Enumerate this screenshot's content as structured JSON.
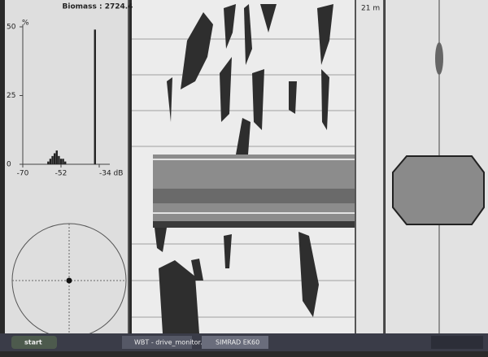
{
  "header": {
    "biomass": "Biomass : 2724.4",
    "depth_label": "21 m"
  },
  "histogram": {
    "y_unit": "%",
    "ylim": [
      0,
      50
    ],
    "yticks": [
      0,
      25,
      50
    ],
    "xlim": [
      -70,
      -34
    ],
    "xticks": [
      -70,
      -52,
      {
        "value": -34,
        "label": "-34 dB"
      }
    ],
    "x": [
      -58,
      -57,
      -56,
      -55,
      -54,
      -53,
      -52,
      -51,
      -50,
      -36
    ],
    "values": [
      1,
      2,
      3,
      4,
      5,
      3,
      2,
      2,
      1,
      49
    ],
    "color": "#222222"
  },
  "taskbar": {
    "start": "start",
    "tasks": [
      "WBT - drive_monitor...",
      "SIMRAD EK60"
    ]
  }
}
